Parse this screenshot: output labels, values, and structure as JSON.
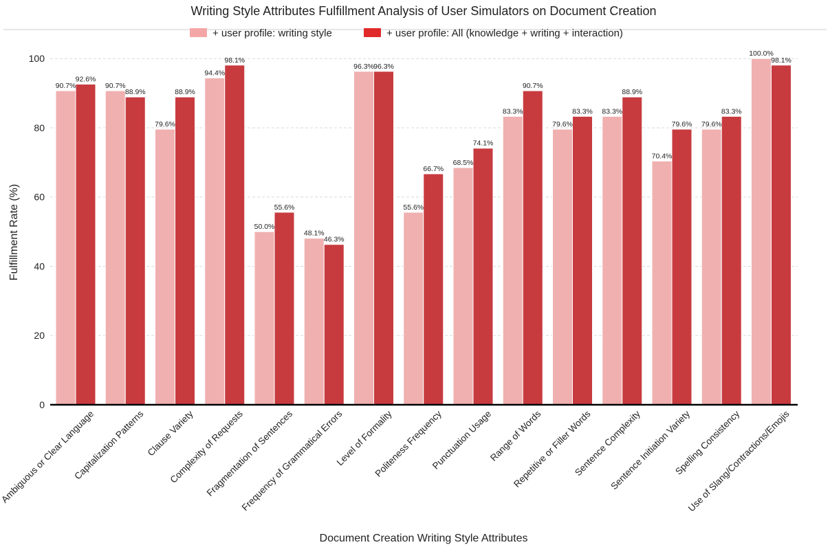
{
  "chart_data": {
    "type": "bar",
    "title": "Writing Style Attributes Fulfillment Analysis of User Simulators on Document Creation",
    "xlabel": "Document Creation Writing Style Attributes",
    "ylabel": "Fulfillment Rate (%)",
    "ylim": [
      0,
      105
    ],
    "yticks": [
      0,
      20,
      40,
      60,
      80,
      100
    ],
    "grid": true,
    "legend_position": "top-center",
    "categories": [
      "Ambiguous or Clear Language",
      "Capitalization Patterns",
      "Clause Variety",
      "Complexity of Requests",
      "Fragmentation of Sentences",
      "Frequency of Grammatical Errors",
      "Level of Formality",
      "Politeness Frequency",
      "Punctuation Usage",
      "Range of Words",
      "Repetitive or Filler Words",
      "Sentence Complexity",
      "Sentence Initiation Variety",
      "Spelling Consistency",
      "Use of Slang/Contractions/Emojis"
    ],
    "series": [
      {
        "name": "+ user profile: writing style",
        "color": "#f0b0b0",
        "values": [
          90.7,
          90.7,
          79.6,
          94.4,
          50.0,
          48.1,
          96.3,
          55.6,
          68.5,
          83.3,
          79.6,
          83.3,
          70.4,
          79.6,
          100.0
        ]
      },
      {
        "name": "+ user profile: All (knowledge + writing + interaction)",
        "color": "#c73b3f",
        "values": [
          92.6,
          88.9,
          88.9,
          98.1,
          55.6,
          46.3,
          96.3,
          66.7,
          74.1,
          90.7,
          83.3,
          88.9,
          79.6,
          83.3,
          98.1
        ]
      }
    ],
    "legend_swatch_colors": [
      "#f4a6a6",
      "#e02a2a"
    ]
  }
}
